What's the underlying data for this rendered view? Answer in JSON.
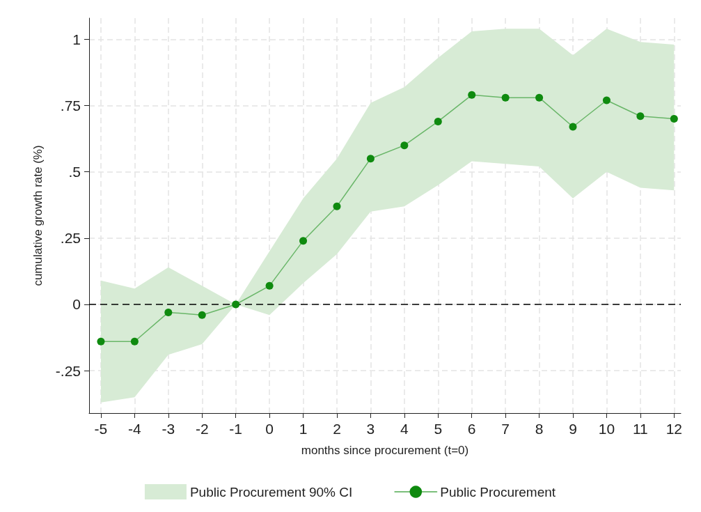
{
  "chart_data": {
    "type": "line",
    "xlabel": "months since procurement (t=0)",
    "ylabel": "cumulative growth rate (%)",
    "x": [
      -5,
      -4,
      -3,
      -2,
      -1,
      0,
      1,
      2,
      3,
      4,
      5,
      6,
      7,
      8,
      9,
      10,
      11,
      12
    ],
    "series": [
      {
        "type": "area",
        "name": "Public Procurement 90% CI",
        "color": "#d7ebd5",
        "values": [
          null,
          null,
          null,
          null,
          null,
          null,
          null,
          null,
          null,
          null,
          null,
          null,
          null,
          null,
          null,
          null,
          null,
          null
        ]
      },
      {
        "name": "Public Procurement",
        "color": "#0f8a0f",
        "marker": "circle",
        "values": [
          -0.14,
          -0.14,
          -0.03,
          -0.04,
          0,
          0.07,
          0.24,
          0.37,
          0.55,
          0.6,
          0.69,
          0.79,
          0.78,
          0.78,
          0.67,
          0.77,
          0.71,
          0.7
        ],
        "lower": [
          -0.37,
          -0.35,
          -0.19,
          -0.15,
          0,
          -0.04,
          0.08,
          0.19,
          0.35,
          0.37,
          0.45,
          0.54,
          0.53,
          0.52,
          0.4,
          0.5,
          0.44,
          0.43
        ],
        "upper": [
          0.09,
          0.06,
          0.14,
          0.07,
          0,
          0.2,
          0.4,
          0.55,
          0.76,
          0.82,
          0.93,
          1.03,
          1.04,
          1.04,
          0.94,
          1.04,
          0.99,
          0.98
        ]
      }
    ],
    "xlim": [
      -5.35,
      12.2
    ],
    "xticks": [
      -5,
      -4,
      -3,
      -2,
      -1,
      0,
      1,
      2,
      3,
      4,
      5,
      6,
      7,
      8,
      9,
      10,
      11,
      12
    ],
    "ylim": [
      -0.41,
      1.08
    ],
    "yticks": [
      {
        "value": -0.25,
        "label": "-.25"
      },
      0,
      {
        "value": 0.25,
        "label": ".25"
      },
      {
        "value": 0.5,
        "label": ".5"
      },
      {
        "value": 0.75,
        "label": ".75"
      },
      1
    ],
    "ref_lines": [
      {
        "axis": "y",
        "value": 0,
        "color": "#000000",
        "line_style": "dashed"
      }
    ],
    "grid": true,
    "legend": "bottom",
    "line_style": "solid"
  }
}
